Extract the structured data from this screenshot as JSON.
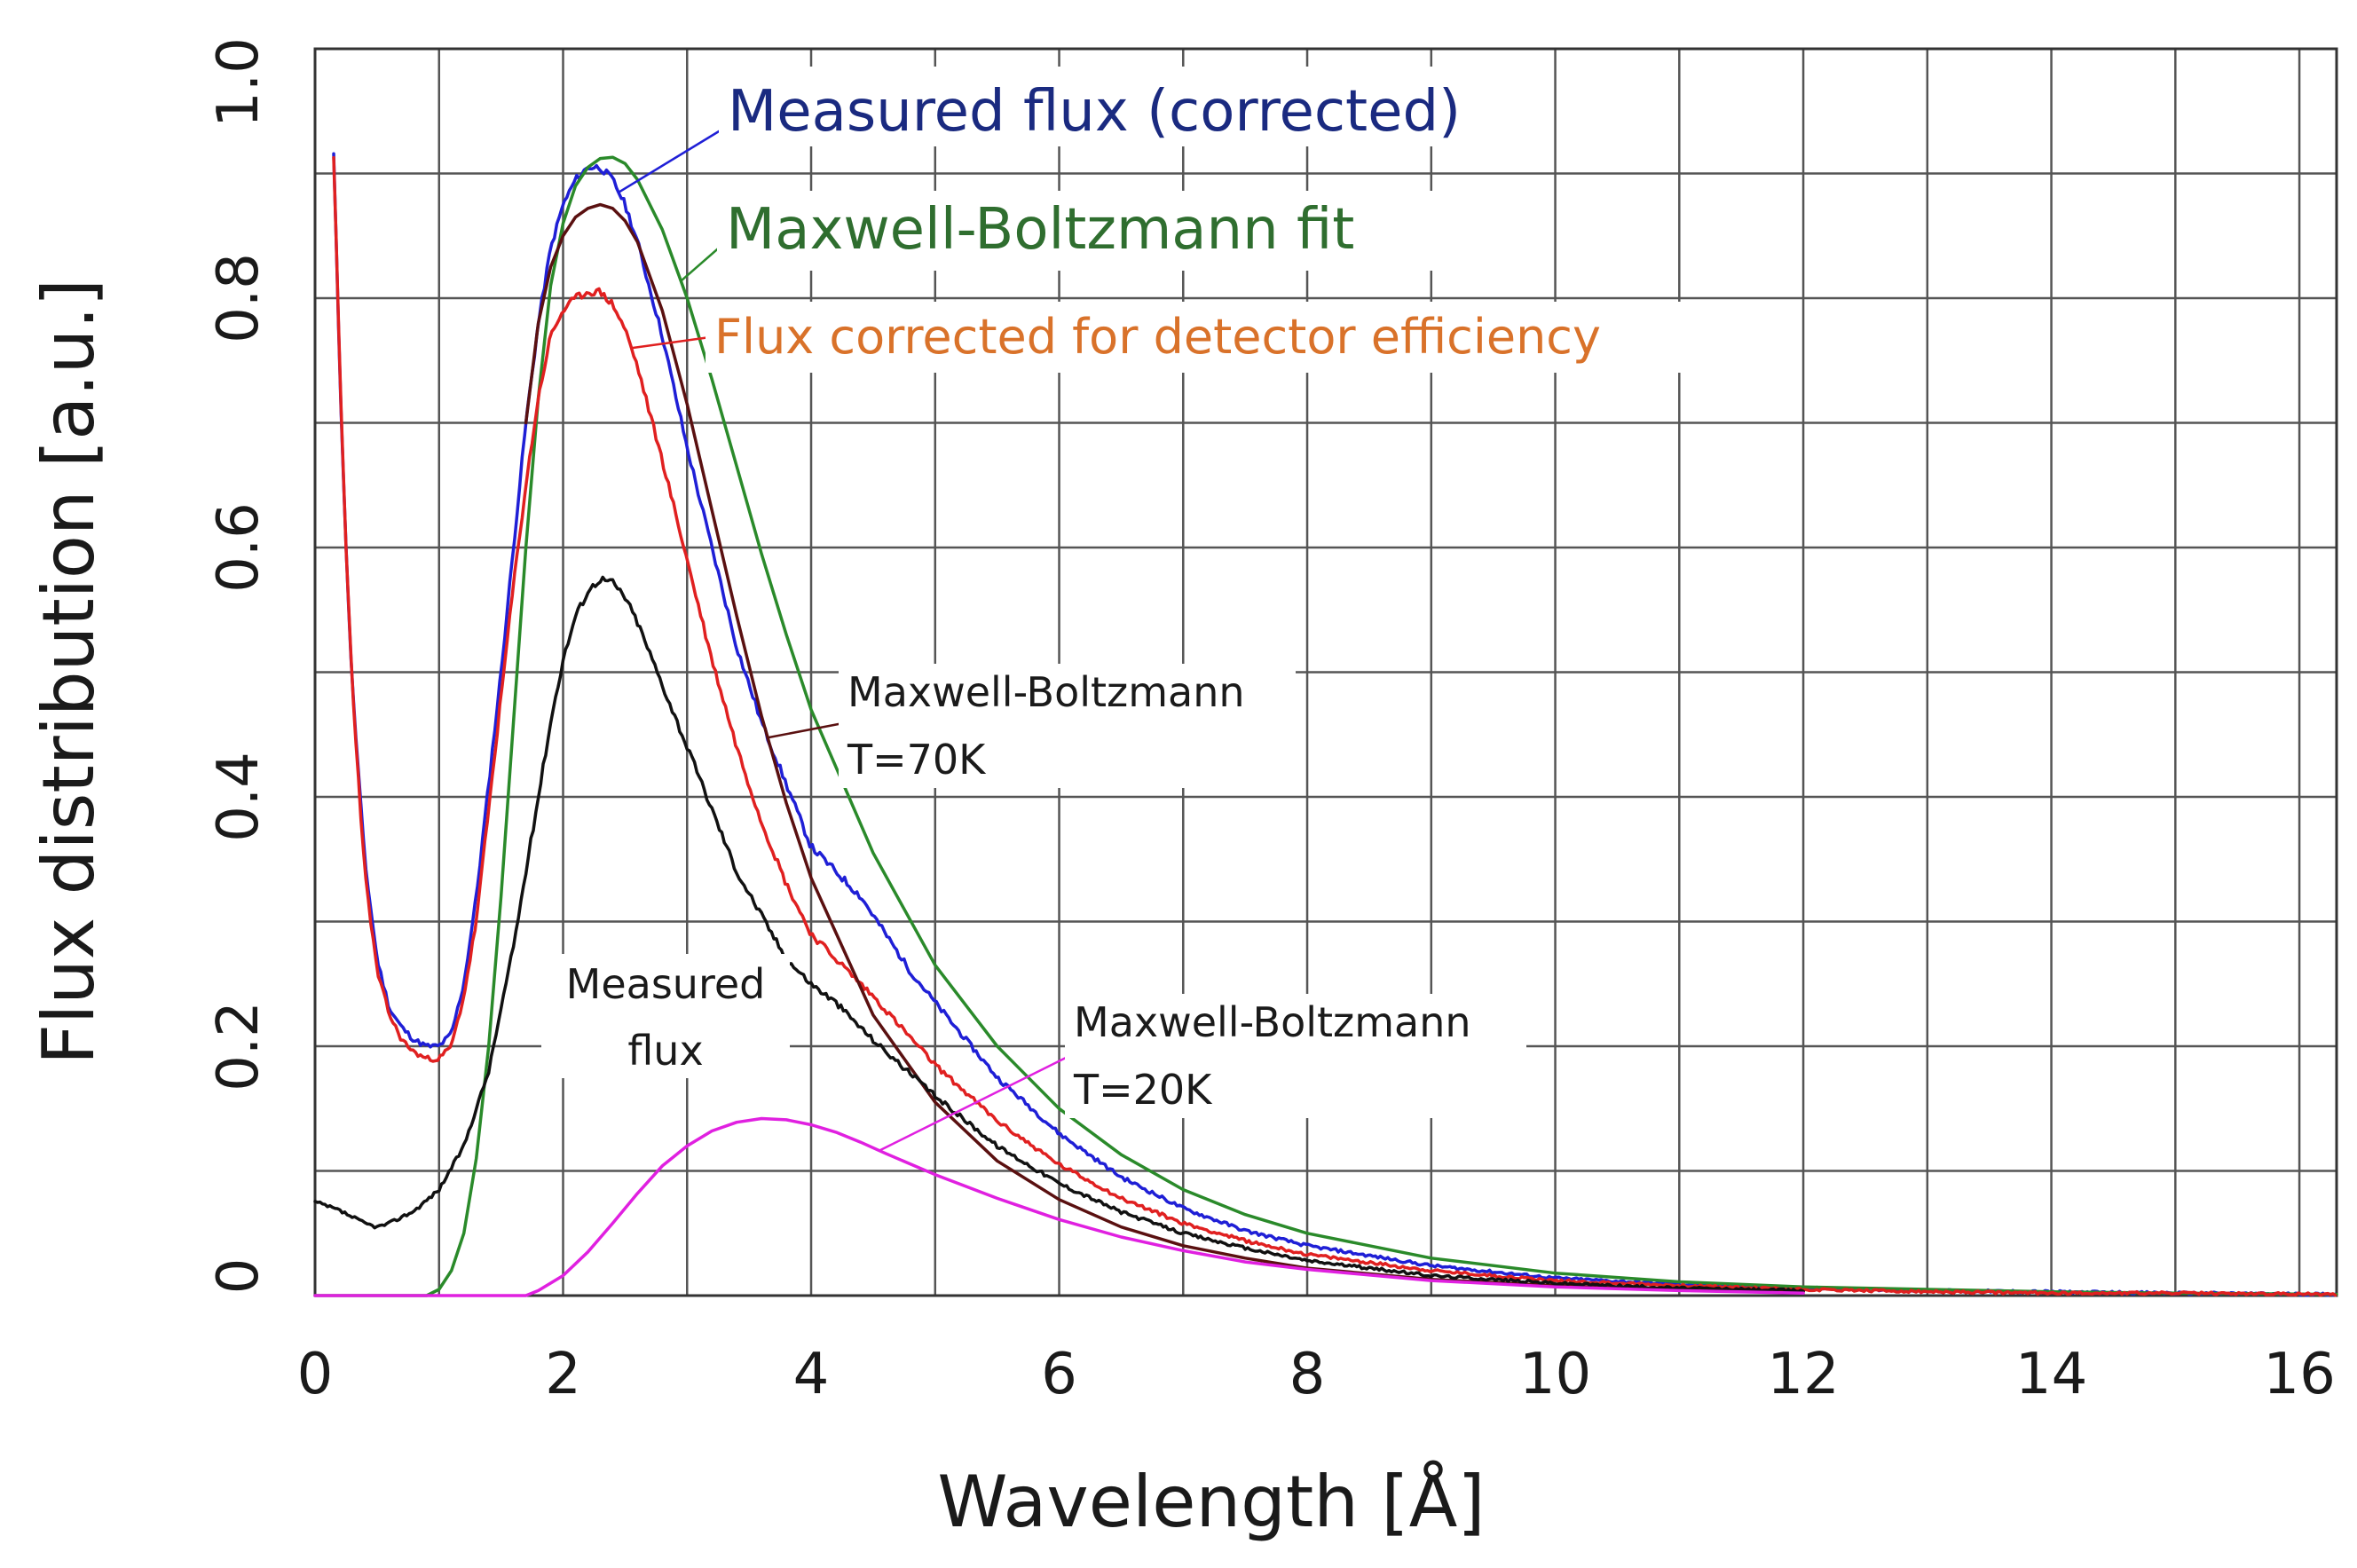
{
  "chart_data": {
    "type": "line",
    "xlabel": "Wavelength [Å]",
    "ylabel": "Flux distribution [a.u.]",
    "xlim": [
      0,
      16.3
    ],
    "ylim": [
      0,
      1.0
    ],
    "x_ticks": [
      0,
      2,
      4,
      6,
      8,
      10,
      12,
      14,
      16
    ],
    "x_tick_labels": [
      "0",
      "2",
      "4",
      "6",
      "8",
      "10",
      "12",
      "14",
      "16"
    ],
    "y_ticks": [
      0,
      0.2,
      0.4,
      0.6,
      0.8,
      1.0
    ],
    "y_tick_labels": [
      "0",
      "0.2",
      "0.4",
      "0.6",
      "0.8",
      "1.0"
    ],
    "grid": true,
    "series": [
      {
        "name": "Measured flux (corrected)",
        "color": "#1f1fd6",
        "x": [
          0.15,
          0.2,
          0.25,
          0.3,
          0.4,
          0.5,
          0.6,
          0.7,
          0.8,
          0.9,
          1.0,
          1.1,
          1.2,
          1.3,
          1.4,
          1.5,
          1.6,
          1.7,
          1.8,
          1.9,
          2.0,
          2.1,
          2.2,
          2.3,
          2.4,
          2.5,
          2.6,
          2.8,
          3.0,
          3.2,
          3.4,
          3.6,
          3.8,
          4.0,
          4.2,
          4.4,
          4.6,
          4.8,
          5.0,
          5.5,
          6.0,
          6.5,
          7.0,
          7.5,
          8.0,
          9.0,
          10.0,
          11.0,
          12.0,
          13.0,
          14.0,
          15.0,
          16.3
        ],
        "y": [
          0.915,
          0.74,
          0.6,
          0.49,
          0.35,
          0.27,
          0.23,
          0.215,
          0.205,
          0.2,
          0.2,
          0.21,
          0.25,
          0.32,
          0.41,
          0.5,
          0.6,
          0.7,
          0.78,
          0.84,
          0.875,
          0.895,
          0.905,
          0.905,
          0.895,
          0.875,
          0.845,
          0.77,
          0.68,
          0.6,
          0.52,
          0.46,
          0.41,
          0.36,
          0.34,
          0.32,
          0.29,
          0.26,
          0.235,
          0.175,
          0.13,
          0.095,
          0.07,
          0.052,
          0.04,
          0.024,
          0.014,
          0.009,
          0.006,
          0.004,
          0.003,
          0.002,
          0.001
        ]
      },
      {
        "name": "Maxwell-Boltzmann fit",
        "color": "#2a8a2a",
        "x": [
          0.0,
          0.9,
          1.0,
          1.1,
          1.2,
          1.3,
          1.4,
          1.5,
          1.6,
          1.7,
          1.8,
          1.9,
          2.0,
          2.1,
          2.2,
          2.3,
          2.4,
          2.5,
          2.6,
          2.8,
          3.0,
          3.2,
          3.4,
          3.6,
          3.8,
          4.0,
          4.5,
          5.0,
          5.5,
          6.0,
          6.5,
          7.0,
          7.5,
          8.0,
          9.0,
          10.0,
          11.0,
          12.0,
          13.0,
          14.0,
          15.0,
          16.3
        ],
        "y": [
          0.0,
          0.0,
          0.005,
          0.02,
          0.05,
          0.11,
          0.2,
          0.32,
          0.46,
          0.6,
          0.72,
          0.81,
          0.86,
          0.89,
          0.905,
          0.912,
          0.913,
          0.908,
          0.895,
          0.855,
          0.8,
          0.735,
          0.665,
          0.595,
          0.53,
          0.47,
          0.355,
          0.265,
          0.2,
          0.15,
          0.113,
          0.085,
          0.065,
          0.05,
          0.03,
          0.018,
          0.011,
          0.007,
          0.005,
          0.003,
          0.002,
          0.001
        ]
      },
      {
        "name": "Flux corrected for detector efficiency",
        "color": "#e02020",
        "x": [
          0.15,
          0.2,
          0.25,
          0.3,
          0.4,
          0.5,
          0.6,
          0.7,
          0.8,
          0.9,
          1.0,
          1.1,
          1.2,
          1.3,
          1.4,
          1.5,
          1.6,
          1.7,
          1.8,
          1.9,
          2.0,
          2.1,
          2.2,
          2.3,
          2.4,
          2.5,
          2.6,
          2.8,
          3.0,
          3.2,
          3.4,
          3.6,
          3.8,
          4.0,
          4.2,
          4.5,
          5.0,
          5.5,
          6.0,
          6.5,
          7.0,
          7.5,
          8.0,
          9.0,
          10.0,
          11.0,
          12.0,
          13.0,
          14.0,
          15.0,
          16.3
        ],
        "y": [
          0.915,
          0.74,
          0.6,
          0.49,
          0.34,
          0.26,
          0.225,
          0.205,
          0.195,
          0.19,
          0.19,
          0.2,
          0.24,
          0.3,
          0.39,
          0.48,
          0.57,
          0.65,
          0.72,
          0.77,
          0.79,
          0.8,
          0.805,
          0.805,
          0.795,
          0.775,
          0.745,
          0.67,
          0.59,
          0.51,
          0.44,
          0.38,
          0.33,
          0.29,
          0.27,
          0.24,
          0.185,
          0.14,
          0.105,
          0.078,
          0.058,
          0.044,
          0.033,
          0.02,
          0.012,
          0.008,
          0.005,
          0.003,
          0.002,
          0.002,
          0.001
        ]
      },
      {
        "name": "Maxwell-Boltzmann T=70K",
        "color": "#5a1010",
        "x": [
          1.7,
          1.8,
          1.9,
          2.0,
          2.1,
          2.2,
          2.3,
          2.4,
          2.5,
          2.6,
          2.8,
          3.0,
          3.2,
          3.4,
          3.6,
          3.8,
          4.0,
          4.5,
          5.0,
          5.5,
          6.0,
          6.5,
          7.0,
          7.5,
          8.0,
          9.0,
          10.0,
          11.0,
          12.0
        ],
        "y": [
          0.7,
          0.78,
          0.825,
          0.85,
          0.865,
          0.872,
          0.875,
          0.872,
          0.862,
          0.845,
          0.79,
          0.715,
          0.63,
          0.545,
          0.465,
          0.395,
          0.335,
          0.225,
          0.155,
          0.108,
          0.077,
          0.055,
          0.04,
          0.03,
          0.022,
          0.013,
          0.008,
          0.005,
          0.003
        ]
      },
      {
        "name": "Measured flux",
        "color": "#111111",
        "x": [
          0.0,
          0.2,
          0.4,
          0.5,
          0.6,
          0.8,
          1.0,
          1.2,
          1.4,
          1.6,
          1.8,
          1.9,
          2.0,
          2.1,
          2.2,
          2.3,
          2.4,
          2.5,
          2.6,
          2.8,
          3.0,
          3.2,
          3.4,
          3.6,
          3.8,
          4.0,
          4.2,
          4.5,
          5.0,
          5.5,
          6.0,
          6.5,
          7.0,
          7.5,
          8.0,
          9.0,
          10.0,
          11.0,
          12.0
        ],
        "y": [
          0.075,
          0.068,
          0.058,
          0.055,
          0.058,
          0.068,
          0.085,
          0.12,
          0.18,
          0.28,
          0.4,
          0.46,
          0.51,
          0.545,
          0.565,
          0.575,
          0.572,
          0.56,
          0.54,
          0.49,
          0.44,
          0.39,
          0.34,
          0.305,
          0.27,
          0.25,
          0.235,
          0.205,
          0.16,
          0.12,
          0.09,
          0.067,
          0.05,
          0.038,
          0.028,
          0.016,
          0.01,
          0.006,
          0.004
        ]
      },
      {
        "name": "Maxwell-Boltzmann T=20K",
        "color": "#e020e0",
        "x": [
          0.0,
          1.7,
          1.8,
          2.0,
          2.2,
          2.4,
          2.6,
          2.8,
          3.0,
          3.2,
          3.4,
          3.6,
          3.8,
          4.0,
          4.2,
          4.4,
          4.6,
          5.0,
          5.5,
          6.0,
          6.5,
          7.0,
          7.5,
          8.0,
          9.0,
          10.0,
          11.0,
          12.0
        ],
        "y": [
          0.0,
          0.0,
          0.004,
          0.016,
          0.035,
          0.058,
          0.082,
          0.104,
          0.12,
          0.132,
          0.139,
          0.142,
          0.141,
          0.137,
          0.131,
          0.123,
          0.114,
          0.097,
          0.078,
          0.061,
          0.047,
          0.036,
          0.027,
          0.021,
          0.012,
          0.007,
          0.004,
          0.002
        ]
      }
    ],
    "annotations": {
      "measured_corrected": "Measured flux (corrected)",
      "mb_fit": "Maxwell-Boltzmann fit",
      "detector_eff": "Flux corrected for detector efficiency",
      "mb70_line1": "Maxwell-Boltzmann",
      "mb70_line2": "T=70K",
      "measured_line1": "Measured",
      "measured_line2": "flux",
      "mb20_line1": "Maxwell-Boltzmann",
      "mb20_line2": "T=20K"
    },
    "annotation_colors": {
      "measured_corrected": "#1a2a80",
      "mb_fit": "#2f6e2f",
      "detector_eff": "#d9722a"
    }
  }
}
